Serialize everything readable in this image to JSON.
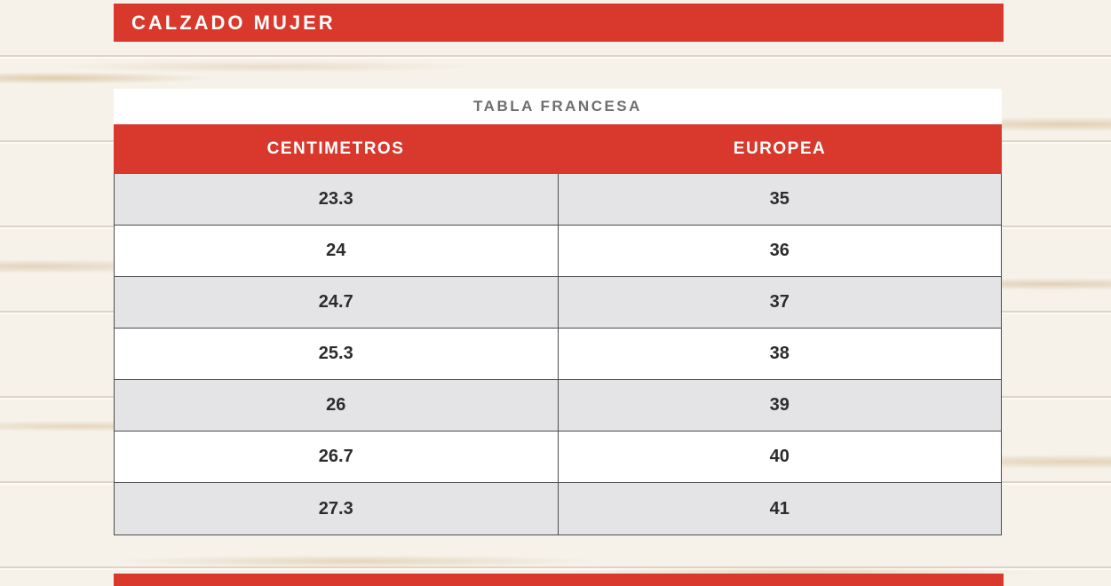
{
  "banner": {
    "title": "CALZADO MUJER"
  },
  "chart_data": {
    "type": "table",
    "title": "TABLA FRANCESA",
    "columns": [
      "CENTIMETROS",
      "EUROPEA"
    ],
    "rows": [
      [
        "23.3",
        "35"
      ],
      [
        "24",
        "36"
      ],
      [
        "24.7",
        "37"
      ],
      [
        "25.3",
        "38"
      ],
      [
        "26",
        "39"
      ],
      [
        "26.7",
        "40"
      ],
      [
        "27.3",
        "41"
      ]
    ]
  },
  "colors": {
    "accent_red": "#d8392c",
    "row_alt_gray": "#e4e4e6",
    "text_dark": "#2c2c2c",
    "title_gray": "#6e6e6e",
    "border_dark": "#4c4c4c"
  }
}
